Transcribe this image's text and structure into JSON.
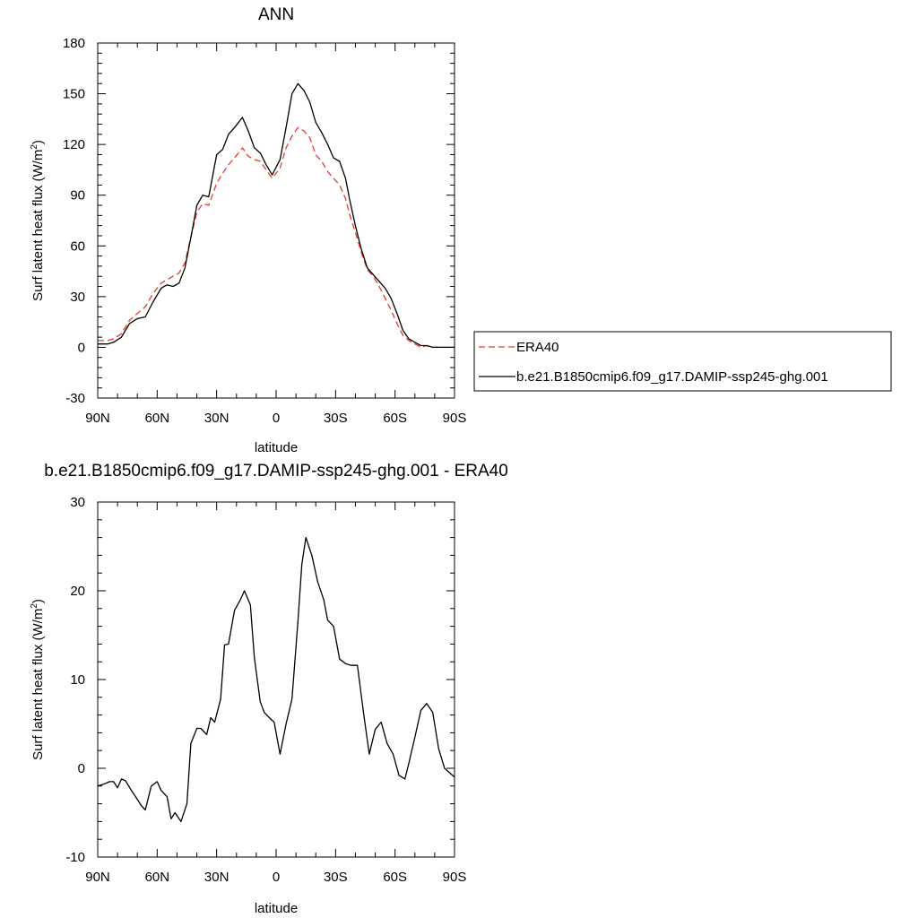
{
  "colors": {
    "model": "#000000",
    "obs": "#e8392f",
    "background": "#ffffff"
  },
  "chart_data": [
    {
      "type": "line",
      "title": "ANN",
      "xlabel": "latitude",
      "ylabel_main": "Surf latent heat flux (W/m",
      "ylabel_sup": "2",
      "ylabel_tail": ")",
      "ylim": [
        -30,
        180
      ],
      "yticks": [
        "180",
        "150",
        "120",
        "90",
        "60",
        "30",
        "0",
        "-30"
      ],
      "ytick_values": [
        180,
        150,
        120,
        90,
        60,
        30,
        0,
        -30
      ],
      "xticks": [
        "90N",
        "60N",
        "30N",
        "0",
        "30S",
        "60S",
        "90S"
      ],
      "xtick_values": [
        90,
        60,
        30,
        0,
        -30,
        -60,
        -90
      ],
      "xlim": [
        90,
        -90
      ],
      "legend_position": "right",
      "x": [
        90,
        85,
        82,
        78,
        74,
        70,
        66,
        62,
        58,
        55,
        52,
        49,
        46,
        43,
        40,
        37,
        34,
        30,
        27,
        24,
        21,
        17,
        14,
        11,
        8,
        5,
        2,
        -2,
        -5,
        -8,
        -11,
        -14,
        -17,
        -20,
        -23,
        -26,
        -29,
        -32,
        -35,
        -37,
        -40,
        -43,
        -46,
        -49,
        -52,
        -55,
        -58,
        -61,
        -64,
        -67,
        -70,
        -73,
        -76,
        -79,
        -82,
        -85,
        -88,
        -90
      ],
      "series": [
        {
          "name": "ERA40",
          "style": "dashed",
          "values": [
            4,
            4,
            5,
            8,
            16,
            20,
            24,
            32,
            38,
            40,
            42,
            44,
            50,
            65,
            80,
            85,
            84,
            97,
            103,
            108,
            112,
            118,
            113,
            111,
            110,
            105,
            100,
            106,
            118,
            125,
            130,
            128,
            124,
            114,
            110,
            104,
            100,
            96,
            88,
            79,
            68,
            56,
            46,
            42,
            36,
            29,
            22,
            14,
            7,
            4,
            2,
            0,
            1,
            0,
            0,
            0,
            0,
            0
          ]
        },
        {
          "name": "b.e21.B1850cmip6.f09_g17.DAMIP-ssp245-ghg.001",
          "style": "solid",
          "values": [
            2,
            2,
            3,
            6,
            14,
            17,
            18,
            27,
            35,
            37,
            36,
            38,
            47,
            65,
            84,
            90,
            89,
            114,
            117,
            126,
            130,
            136,
            128,
            118,
            115,
            108,
            102,
            111,
            130,
            150,
            156,
            152,
            145,
            133,
            127,
            120,
            112,
            110,
            100,
            88,
            72,
            58,
            47,
            43,
            39,
            35,
            29,
            20,
            10,
            5,
            3,
            1,
            1,
            0,
            0,
            0,
            0,
            0
          ]
        }
      ]
    },
    {
      "type": "line",
      "title": "b.e21.B1850cmip6.f09_g17.DAMIP-ssp245-ghg.001 - ERA40",
      "xlabel": "latitude",
      "ylabel_main": "Surf latent heat flux (W/m",
      "ylabel_sup": "2",
      "ylabel_tail": ")",
      "ylim": [
        -10,
        30
      ],
      "yticks": [
        "30",
        "20",
        "10",
        "0",
        "-10"
      ],
      "ytick_values": [
        30,
        20,
        10,
        0,
        -10
      ],
      "xticks": [
        "90N",
        "60N",
        "30N",
        "0",
        "30S",
        "60S",
        "90S"
      ],
      "xtick_values": [
        90,
        60,
        30,
        0,
        -30,
        -60,
        -90
      ],
      "xlim": [
        90,
        -90
      ],
      "x": [
        90,
        87,
        84,
        82,
        80,
        78,
        76,
        73,
        70,
        68,
        66,
        63,
        60,
        58,
        55,
        53,
        51,
        48,
        45,
        43,
        40,
        38,
        35,
        33,
        31,
        28,
        26,
        24,
        21,
        18,
        16,
        13,
        11,
        8,
        6,
        3,
        1,
        -2,
        -5,
        -8,
        -11,
        -13,
        -15,
        -18,
        -21,
        -24,
        -26,
        -29,
        -32,
        -35,
        -38,
        -41,
        -44,
        -47,
        -50,
        -53,
        -56,
        -59,
        -62,
        -65,
        -67,
        -70,
        -73,
        -76,
        -79,
        -82,
        -85,
        -88,
        -90
      ],
      "series": [
        {
          "name": "",
          "style": "solid",
          "values": [
            -2,
            -1.8,
            -1.5,
            -1.5,
            -2.2,
            -1.2,
            -1.4,
            -2.5,
            -3.5,
            -4.2,
            -4.7,
            -2,
            -1.5,
            -2.5,
            -3.2,
            -5.7,
            -5,
            -6,
            -4,
            2.8,
            4.5,
            4.5,
            3.8,
            5.7,
            5.2,
            7.8,
            13.9,
            14,
            17.8,
            19,
            20,
            18.4,
            12.5,
            7.5,
            6.3,
            5.6,
            5.2,
            1.6,
            5,
            7.8,
            16.5,
            23,
            26,
            24,
            21,
            19,
            16.7,
            16,
            12.3,
            11.8,
            11.6,
            11.6,
            6.4,
            1.6,
            4.4,
            5.2,
            2.8,
            1.6,
            -0.8,
            -1.2,
            0.6,
            3.5,
            6.5,
            7.3,
            6.3,
            2.2,
            0,
            -0.6,
            -1
          ]
        }
      ]
    }
  ]
}
